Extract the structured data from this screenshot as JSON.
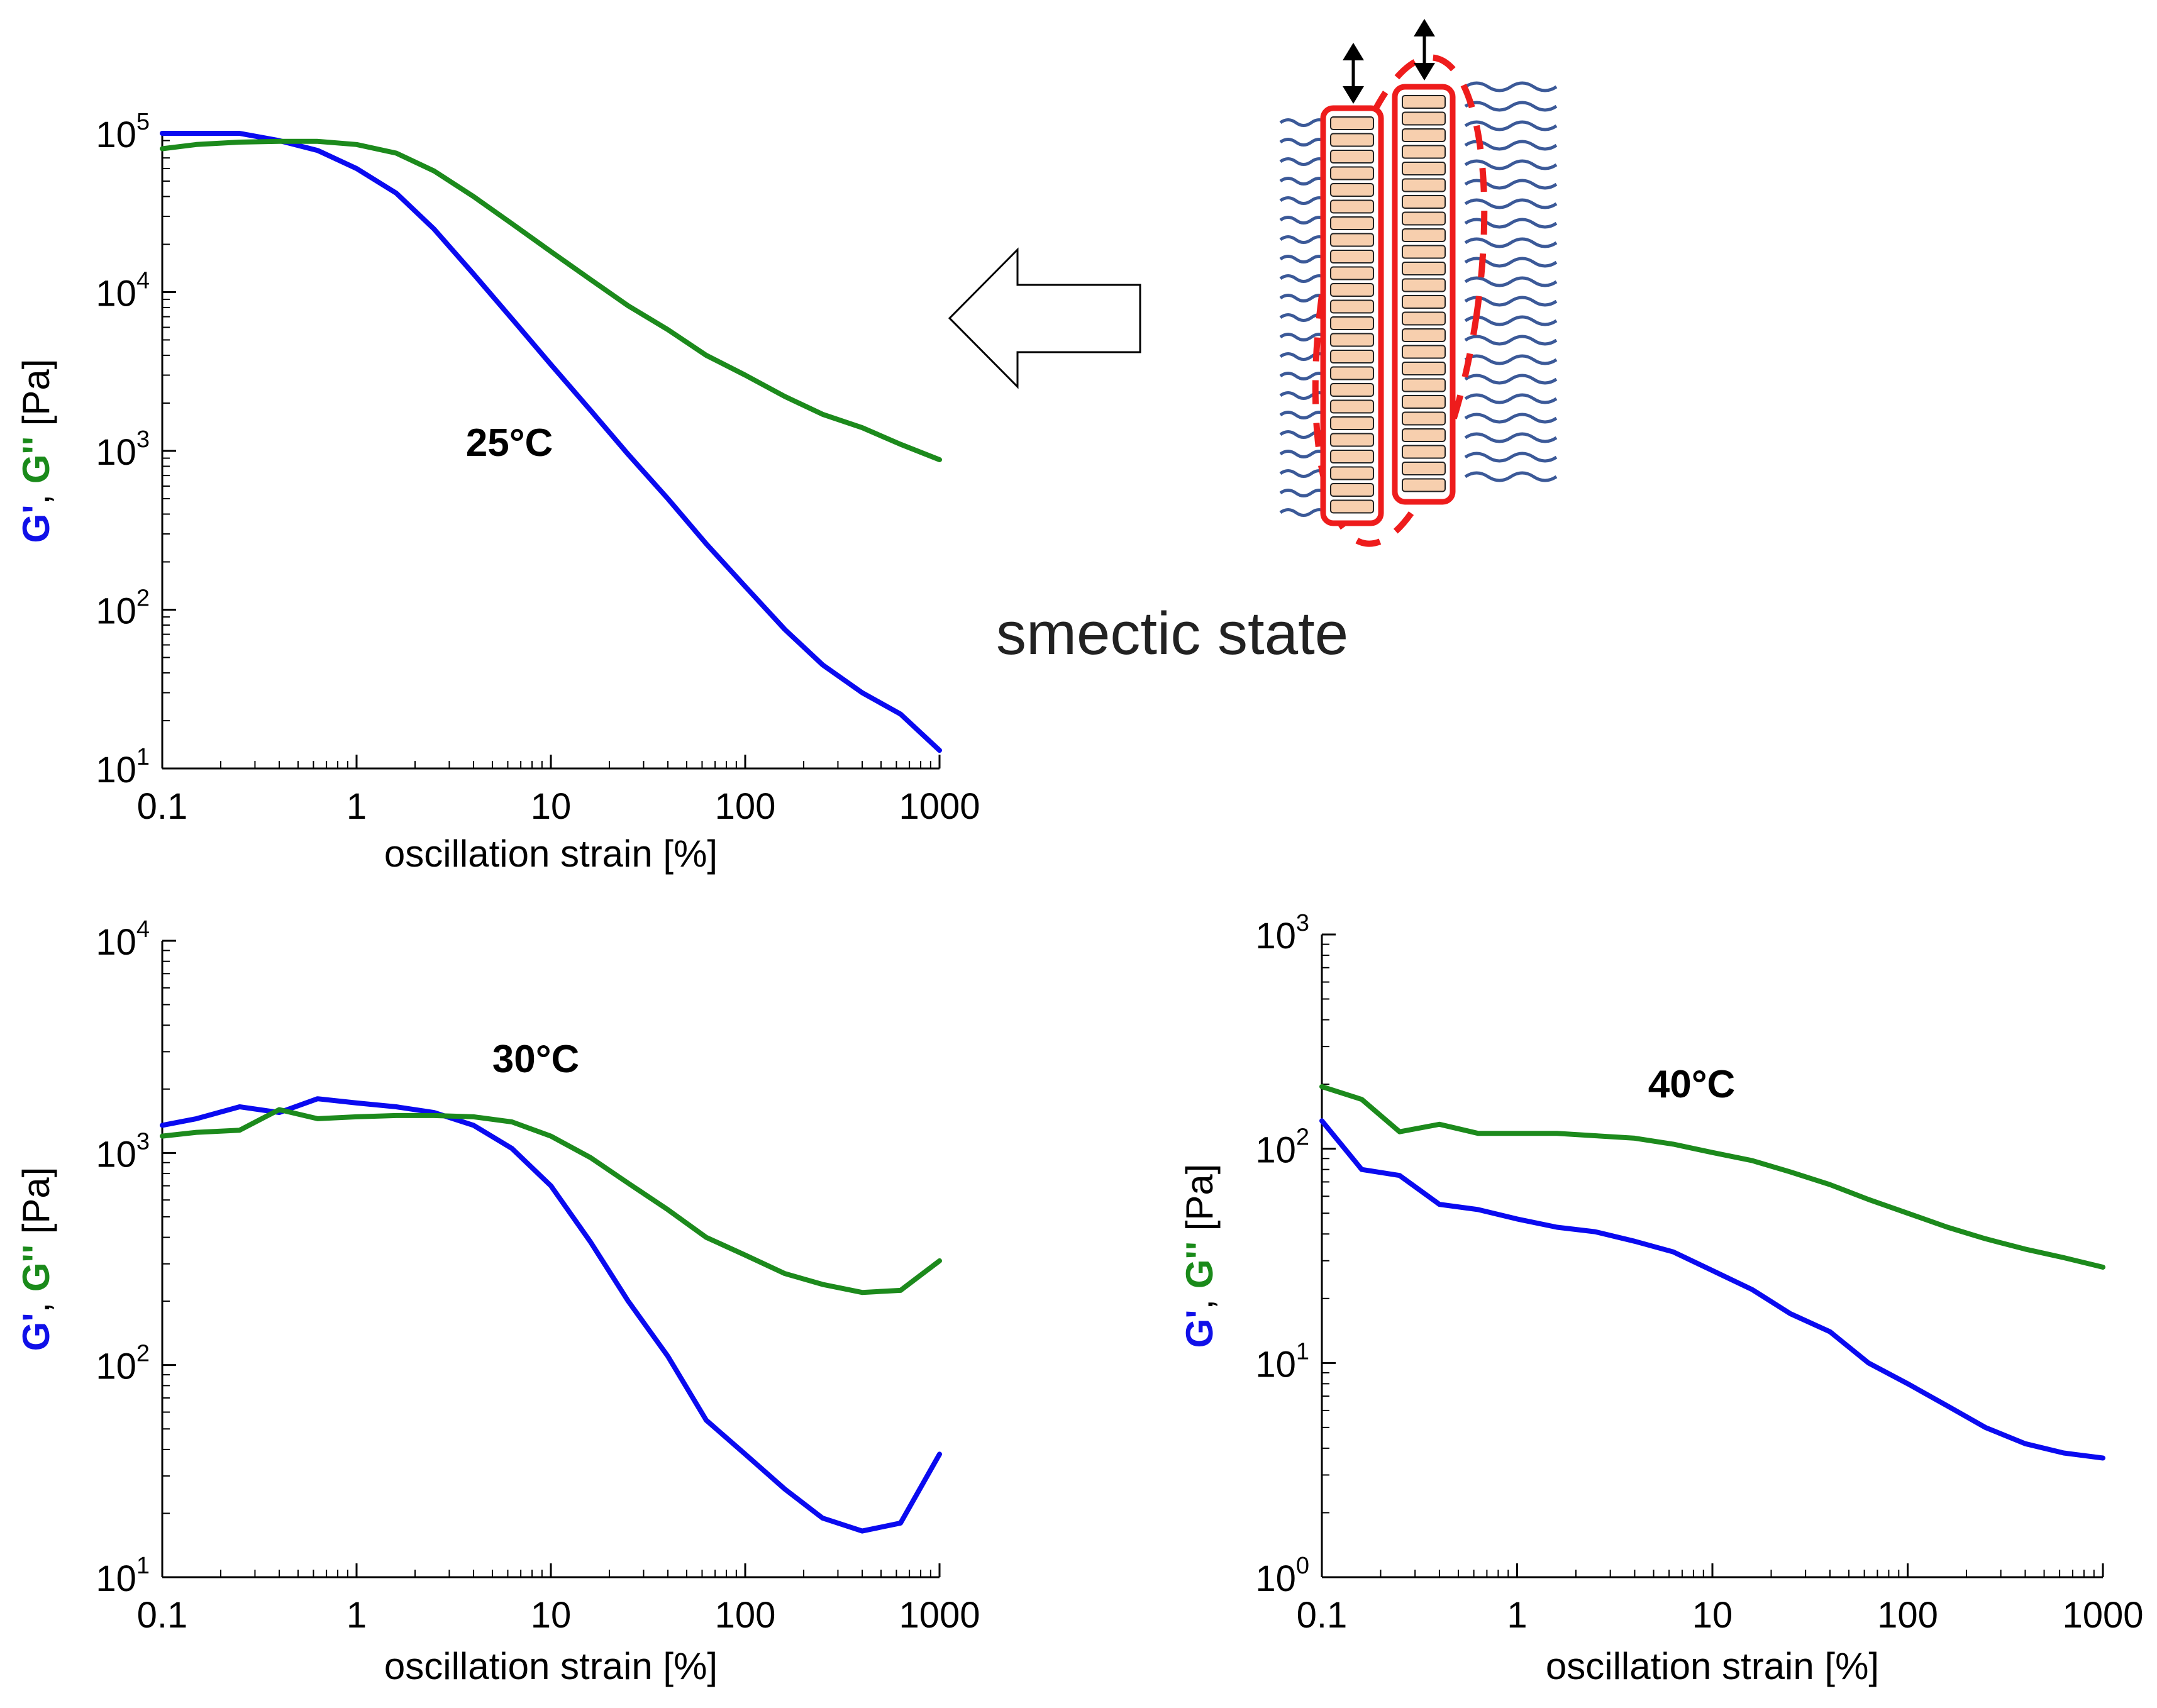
{
  "colors": {
    "g_prime": "#0a0af0",
    "g_double_prime": "#1c8a1c",
    "red": "#ee1c1c",
    "chain": "#3b5998",
    "block_fill": "#f7cfae"
  },
  "caption": "smectic state",
  "chart_data": [
    {
      "id": "p25",
      "type": "line",
      "title": "25°C",
      "xlabel": "oscillation strain [%]",
      "ylabel_parts": [
        "G'",
        ", ",
        "G''",
        " [Pa]"
      ],
      "xscale": "log",
      "yscale": "log",
      "xlim": [
        0.1,
        1000
      ],
      "ylim": [
        10,
        100000
      ],
      "xticks": [
        {
          "v": 0.1,
          "t": "0.1"
        },
        {
          "v": 1,
          "t": "1"
        },
        {
          "v": 10,
          "t": "10"
        },
        {
          "v": 100,
          "t": "100"
        },
        {
          "v": 1000,
          "t": "1000"
        }
      ],
      "yticks": [
        {
          "v": 10,
          "m": "10",
          "e": "1"
        },
        {
          "v": 100,
          "m": "10",
          "e": "2"
        },
        {
          "v": 1000,
          "m": "10",
          "e": "3"
        },
        {
          "v": 10000,
          "m": "10",
          "e": "4"
        },
        {
          "v": 100000,
          "m": "10",
          "e": "5"
        }
      ],
      "series": [
        {
          "name": "G'",
          "color": "#0a0af0",
          "x": [
            0.1,
            0.15,
            0.25,
            0.4,
            0.63,
            1,
            1.6,
            2.5,
            4,
            6.3,
            10,
            16,
            25,
            40,
            63,
            100,
            160,
            250,
            400,
            630,
            1000
          ],
          "y": [
            100000,
            100000,
            100000,
            90000,
            78000,
            60000,
            42000,
            25000,
            13000,
            6800,
            3500,
            1800,
            950,
            500,
            260,
            140,
            75,
            45,
            30,
            22,
            13
          ]
        },
        {
          "name": "G''",
          "color": "#1c8a1c",
          "x": [
            0.1,
            0.15,
            0.25,
            0.4,
            0.63,
            1,
            1.6,
            2.5,
            4,
            6.3,
            10,
            16,
            25,
            40,
            63,
            100,
            160,
            250,
            400,
            630,
            1000
          ],
          "y": [
            80000,
            85000,
            88000,
            89000,
            89000,
            85000,
            75000,
            58000,
            40000,
            27000,
            18000,
            12000,
            8200,
            5800,
            4000,
            3000,
            2200,
            1700,
            1400,
            1100,
            880
          ]
        }
      ]
    },
    {
      "id": "p30",
      "type": "line",
      "title": "30°C",
      "xlabel": "oscillation strain [%]",
      "ylabel_parts": [
        "G'",
        ", ",
        "G''",
        " [Pa]"
      ],
      "xscale": "log",
      "yscale": "log",
      "xlim": [
        0.1,
        1000
      ],
      "ylim": [
        10,
        10000
      ],
      "xticks": [
        {
          "v": 0.1,
          "t": "0.1"
        },
        {
          "v": 1,
          "t": "1"
        },
        {
          "v": 10,
          "t": "10"
        },
        {
          "v": 100,
          "t": "100"
        },
        {
          "v": 1000,
          "t": "1000"
        }
      ],
      "yticks": [
        {
          "v": 10,
          "m": "10",
          "e": "1"
        },
        {
          "v": 100,
          "m": "10",
          "e": "2"
        },
        {
          "v": 1000,
          "m": "10",
          "e": "3"
        },
        {
          "v": 10000,
          "m": "10",
          "e": "4"
        }
      ],
      "series": [
        {
          "name": "G'",
          "color": "#0a0af0",
          "x": [
            0.1,
            0.15,
            0.25,
            0.4,
            0.63,
            1,
            1.6,
            2.5,
            4,
            6.3,
            10,
            16,
            25,
            40,
            63,
            100,
            160,
            250,
            400,
            630,
            1000
          ],
          "y": [
            1350,
            1450,
            1650,
            1550,
            1800,
            1720,
            1650,
            1550,
            1350,
            1050,
            700,
            380,
            200,
            110,
            55,
            38,
            26,
            19,
            16.5,
            18,
            38
          ]
        },
        {
          "name": "G''",
          "color": "#1c8a1c",
          "x": [
            0.1,
            0.15,
            0.25,
            0.4,
            0.63,
            1,
            1.6,
            2.5,
            4,
            6.3,
            10,
            16,
            25,
            40,
            63,
            100,
            160,
            250,
            400,
            630,
            1000
          ],
          "y": [
            1200,
            1250,
            1280,
            1600,
            1450,
            1480,
            1500,
            1500,
            1480,
            1400,
            1200,
            950,
            720,
            540,
            400,
            330,
            270,
            240,
            220,
            225,
            310
          ]
        }
      ]
    },
    {
      "id": "p40",
      "type": "line",
      "title": "40°C",
      "xlabel": "oscillation strain [%]",
      "ylabel_parts": [
        "G'",
        ", ",
        "G''",
        " [Pa]"
      ],
      "xscale": "log",
      "yscale": "log",
      "xlim": [
        0.1,
        1000
      ],
      "ylim": [
        1,
        1000
      ],
      "xticks": [
        {
          "v": 0.1,
          "t": "0.1"
        },
        {
          "v": 1,
          "t": "1"
        },
        {
          "v": 10,
          "t": "10"
        },
        {
          "v": 100,
          "t": "100"
        },
        {
          "v": 1000,
          "t": "1000"
        }
      ],
      "yticks": [
        {
          "v": 1,
          "m": "10",
          "e": "0"
        },
        {
          "v": 10,
          "m": "10",
          "e": "1"
        },
        {
          "v": 100,
          "m": "10",
          "e": "2"
        },
        {
          "v": 1000,
          "m": "10",
          "e": "3"
        }
      ],
      "series": [
        {
          "name": "G'",
          "color": "#0a0af0",
          "x": [
            0.1,
            0.16,
            0.25,
            0.4,
            0.63,
            1,
            1.6,
            2.5,
            4,
            6.3,
            10,
            16,
            25,
            40,
            63,
            100,
            160,
            250,
            400,
            630,
            1000
          ],
          "y": [
            135,
            80,
            75,
            55,
            52,
            47,
            43,
            41,
            37,
            33,
            27,
            22,
            17,
            14,
            10,
            8,
            6.3,
            5,
            4.2,
            3.8,
            3.6
          ]
        },
        {
          "name": "G''",
          "color": "#1c8a1c",
          "x": [
            0.1,
            0.16,
            0.25,
            0.4,
            0.63,
            1,
            1.6,
            2.5,
            4,
            6.3,
            10,
            16,
            25,
            40,
            63,
            100,
            160,
            250,
            400,
            630,
            1000
          ],
          "y": [
            195,
            170,
            120,
            130,
            118,
            118,
            118,
            115,
            112,
            105,
            96,
            88,
            78,
            68,
            58,
            50,
            43,
            38,
            34,
            31,
            28
          ]
        }
      ]
    }
  ]
}
